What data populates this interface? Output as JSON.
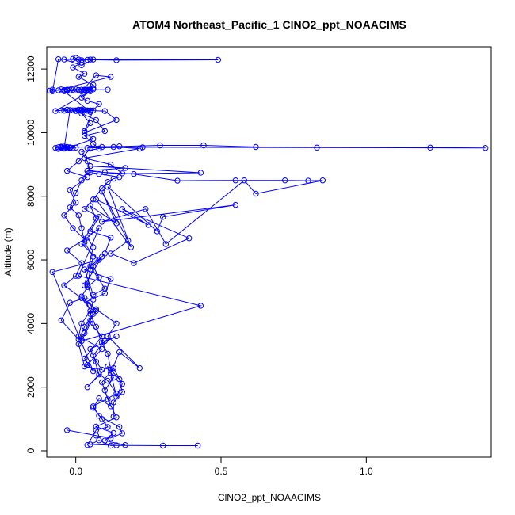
{
  "chart_data": {
    "type": "line",
    "title": "ATOM4 Northeast_Pacific_1 ClNO2_ppt_NOAACIMS",
    "xlabel": "ClNO2_ppt_NOAACIMS",
    "ylabel": "Altitude (m)",
    "xlim": [
      -0.1,
      1.43
    ],
    "ylim": [
      -200,
      12700
    ],
    "xticks": [
      0.0,
      0.5,
      1.0
    ],
    "xtick_labels": [
      "0.0",
      "0.5",
      "1.0"
    ],
    "yticks": [
      0,
      2000,
      4000,
      6000,
      8000,
      10000,
      12000
    ],
    "ytick_labels": [
      "0",
      "2000",
      "4000",
      "6000",
      "8000",
      "10000",
      "12000"
    ],
    "grid": false,
    "color": "#0000ff",
    "series": [
      {
        "x": [
          0.42,
          0.3,
          0.14,
          0.05,
          0.08,
          0.12,
          0.17,
          0.1,
          0.13,
          0.07,
          0.14,
          0.11,
          0.09,
          0.13,
          0.16,
          0.14,
          0.12,
          0.15,
          0.22,
          0.11,
          0.14,
          0.07,
          0.04,
          0.1,
          0.12,
          0.03,
          0.06,
          0.1,
          0.05,
          0.09,
          0.03,
          0.06,
          0.04,
          0.08,
          0.01,
          0.43,
          0.02,
          0.05,
          0.09,
          0.03,
          0.06,
          -0.08,
          0.08,
          0.02,
          0.07,
          0.05,
          0.14,
          0.09,
          0.18,
          0.12,
          0.2,
          0.39,
          0.16,
          0.25,
          0.07,
          0.19,
          0.11,
          0.28,
          0.3,
          0.55,
          0.09,
          0.24,
          0.31,
          0.58,
          0.62,
          0.85,
          0.8,
          0.72,
          0.55,
          0.35,
          0.2,
          0.1,
          0.04,
          0.17,
          0.05,
          0.43,
          0.08,
          0.16,
          0.12,
          0.03,
          0.22,
          0.13,
          0.04,
          0.23,
          1.41,
          1.22,
          0.83,
          0.62,
          0.44,
          0.29,
          0.09,
          0.15,
          -0.02,
          0.06,
          0.03,
          0.14,
          0.1,
          0.02,
          0.0,
          0.05,
          -0.04,
          0.04,
          0.11,
          -0.03,
          0.06,
          0.02,
          0.07,
          0.12,
          -0.08,
          -0.06,
          0.04,
          0.01,
          0.14,
          0.49,
          0.06,
          0.02,
          -0.04,
          -0.01,
          0.05,
          0.02
        ],
        "y": [
          160,
          160,
          170,
          200,
          330,
          160,
          180,
          320,
          560,
          760,
          1050,
          1620,
          2150,
          2600,
          2100,
          1700,
          2450,
          3100,
          2600,
          3600,
          4000,
          4450,
          4700,
          4950,
          5400,
          5700,
          4900,
          5100,
          5800,
          6100,
          5200,
          6400,
          6700,
          7000,
          5500,
          4560,
          3450,
          4000,
          3600,
          2900,
          2500,
          5620,
          6000,
          6500,
          7300,
          7700,
          7150,
          8150,
          6600,
          6200,
          5900,
          6680,
          7600,
          7100,
          7900,
          6400,
          8300,
          6900,
          7350,
          7730,
          7200,
          7600,
          6500,
          8500,
          8080,
          8500,
          8490,
          8500,
          8500,
          8490,
          8700,
          8750,
          8800,
          8890,
          8950,
          8740,
          8700,
          8720,
          9000,
          9200,
          9500,
          9550,
          9520,
          9540,
          9520,
          9530,
          9530,
          9550,
          9600,
          9600,
          9550,
          9570,
          9540,
          9800,
          10000,
          10400,
          10680,
          10700,
          10700,
          10650,
          11300,
          11350,
          11350,
          11330,
          11400,
          11300,
          11800,
          11750,
          11300,
          12310,
          12290,
          12300,
          12280,
          12290,
          12300,
          12120,
          12300,
          12320,
          12300,
          12280
        ]
      },
      {
        "x": [
          0.04,
          0.07,
          0.11,
          0.09,
          0.06,
          0.08,
          0.12,
          0.1,
          0.13,
          0.11,
          0.04,
          0.08,
          0.06,
          0.1,
          0.14,
          0.05,
          0.07,
          0.09,
          0.03,
          0.01,
          0.03,
          0.05,
          0.07,
          0.02,
          0.04,
          0.08,
          0.06,
          0.1,
          0.12,
          0.05,
          0.08,
          0.03,
          0.06,
          0.09,
          0.11,
          0.13,
          0.15,
          0.05,
          0.04,
          0.02,
          0.08,
          0.06,
          0.03,
          0.1,
          0.07,
          0.02,
          0.05,
          0.03,
          0.06,
          0.08,
          0.04,
          0.02,
          0.05,
          0.03,
          0.06,
          0.01,
          0.03,
          -0.01,
          0.02,
          0.0
        ],
        "y": [
          180,
          650,
          750,
          1000,
          1350,
          1650,
          1400,
          1900,
          2300,
          2650,
          2000,
          2400,
          3000,
          3450,
          3600,
          3200,
          2800,
          2550,
          2650,
          3350,
          3700,
          4100,
          4400,
          4850,
          5150,
          5450,
          5800,
          6200,
          6700,
          6900,
          7350,
          7600,
          7900,
          8250,
          8450,
          8550,
          8600,
          8750,
          9100,
          9400,
          9500,
          9650,
          9900,
          10050,
          10400,
          10600,
          10300,
          10050,
          10700,
          10900,
          11000,
          11100,
          11300,
          11350,
          11500,
          11750,
          11850,
          12050,
          12200,
          12350
        ]
      },
      {
        "x": [
          -0.03,
          0.07,
          0.12,
          0.16,
          0.15,
          0.08,
          0.06,
          0.14,
          0.11,
          0.04,
          0.09,
          0.01,
          0.02,
          0.05,
          0.03,
          -0.02,
          -0.05,
          0.01,
          0.03,
          0.06,
          0.02,
          -0.04,
          0.0,
          0.02,
          -0.03,
          0.03,
          -0.01,
          -0.04,
          0.0,
          -0.02,
          0.04,
          -0.03,
          0.01,
          0.05
        ],
        "y": [
          650,
          480,
          400,
          550,
          750,
          1100,
          1400,
          1800,
          2200,
          2700,
          3200,
          3600,
          4000,
          4400,
          4800,
          4650,
          4100,
          3500,
          3900,
          4300,
          4800,
          5200,
          5500,
          5900,
          6300,
          6650,
          7000,
          7400,
          7800,
          8200,
          8600,
          8800,
          9100,
          9500
        ]
      },
      {
        "x": [
          0.13,
          0.13,
          0.16,
          0.15,
          0.12,
          0.11,
          0.09,
          0.07,
          0.05,
          0.06,
          0.04,
          0.05,
          0.06,
          0.03,
          0.02,
          0.01,
          -0.02,
          0.0,
          0.02,
          0.04
        ],
        "y": [
          1080,
          1520,
          1850,
          2250,
          2550,
          3050,
          3400,
          3900,
          4300,
          4750,
          5200,
          5700,
          6100,
          6550,
          7000,
          7400,
          7650,
          8100,
          8500,
          8800
        ]
      },
      {
        "x": [
          -0.07,
          -0.05,
          -0.06,
          -0.04,
          -0.02,
          -0.05,
          -0.03,
          -0.06,
          -0.04,
          -0.01,
          -0.03,
          -0.05,
          -0.02,
          0.0,
          -0.04,
          -0.02,
          0.01,
          -0.01,
          0.02,
          0.0,
          0.03,
          0.02,
          0.05,
          0.04,
          0.02
        ],
        "y": [
          9520,
          9560,
          9540,
          9500,
          9520,
          9530,
          9510,
          9490,
          9560,
          9520,
          9550,
          9540,
          9520,
          9530,
          9520,
          10700,
          10720,
          10700,
          10680,
          10690,
          10700,
          10710,
          10690,
          10700,
          10720
        ]
      },
      {
        "x": [
          -0.09,
          -0.08,
          -0.06,
          -0.05,
          -0.04,
          -0.03,
          -0.02,
          -0.01,
          0.0,
          0.01,
          0.02,
          0.03,
          0.04,
          0.05,
          0.06,
          -0.07,
          -0.05,
          -0.03,
          -0.04,
          -0.02,
          0.0,
          0.01,
          0.03,
          0.04,
          0.05
        ],
        "y": [
          11320,
          11350,
          11330,
          11360,
          11340,
          11350,
          11330,
          11350,
          11360,
          11340,
          11350,
          11330,
          11340,
          11350,
          11360,
          10680,
          10700,
          10720,
          10690,
          10710,
          10680,
          10700,
          10710,
          10690,
          10700
        ]
      }
    ]
  }
}
